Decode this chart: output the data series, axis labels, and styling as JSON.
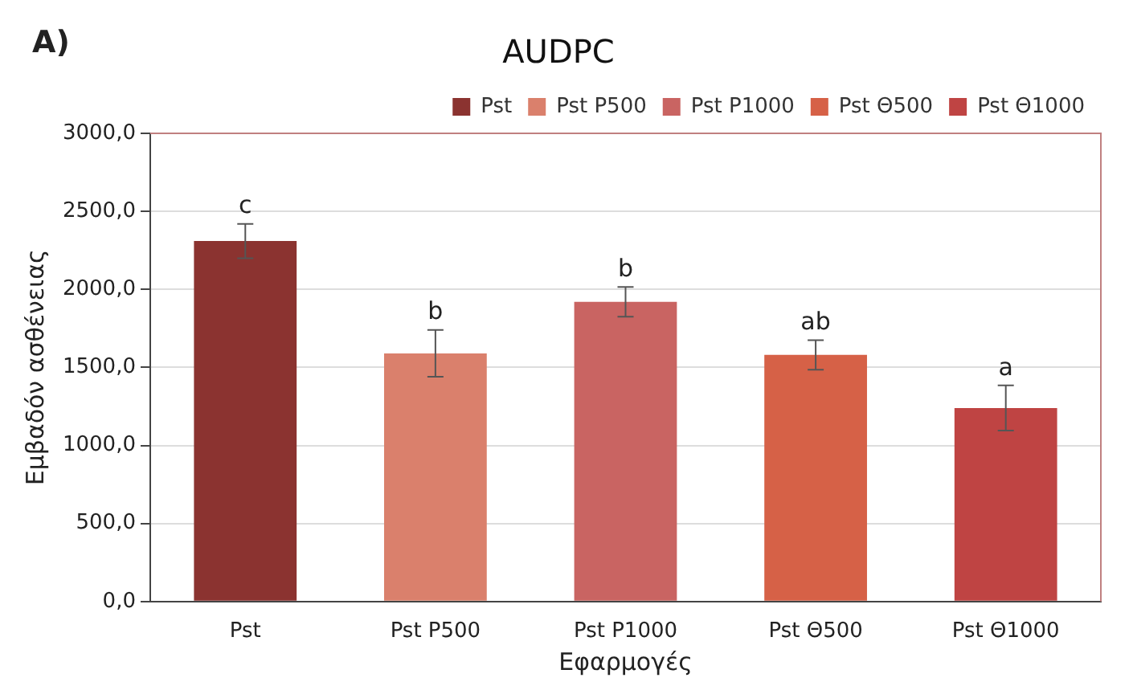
{
  "chart_data": {
    "type": "bar",
    "title": "AUDPC",
    "xlabel": "Εφαρμογές",
    "ylabel": "Εμβαδόν ασθένειας",
    "categories": [
      "Pst",
      "Pst P500",
      "Pst P1000",
      "Pst Θ500",
      "Pst Θ1000"
    ],
    "series": [
      {
        "name": "Pst",
        "color": "#8b3330",
        "values": [
          2310,
          null,
          null,
          null,
          null
        ],
        "errors": [
          110,
          null,
          null,
          null,
          null
        ]
      },
      {
        "name": "Pst P500",
        "color": "#da806c",
        "values": [
          null,
          1590,
          null,
          null,
          null
        ],
        "errors": [
          null,
          150,
          null,
          null,
          null
        ]
      },
      {
        "name": "Pst P1000",
        "color": "#c96462",
        "values": [
          null,
          null,
          1920,
          null,
          null
        ],
        "errors": [
          null,
          null,
          95,
          null,
          null
        ]
      },
      {
        "name": "Pst Θ500",
        "color": "#d66147",
        "values": [
          null,
          null,
          null,
          1580,
          null
        ],
        "errors": [
          null,
          null,
          null,
          95,
          null
        ]
      },
      {
        "name": "Pst Θ1000",
        "color": "#bf4443",
        "values": [
          null,
          null,
          null,
          null,
          1240
        ],
        "errors": [
          null,
          null,
          null,
          null,
          145
        ]
      }
    ],
    "ylim": [
      0,
      3000
    ],
    "yticks": [
      {
        "value": 0,
        "label": "0,0"
      },
      {
        "value": 500,
        "label": "500,0"
      },
      {
        "value": 1000,
        "label": "1000,0"
      },
      {
        "value": 1500,
        "label": "1500,0"
      },
      {
        "value": 2000,
        "label": "2000,0"
      },
      {
        "value": 2500,
        "label": "2500,0"
      },
      {
        "value": 3000,
        "label": "3000,0"
      }
    ],
    "grid": "y",
    "legend": "top",
    "annotations": [
      "A)",
      {
        "text": "c",
        "x": "Pst",
        "y": 2424
      },
      {
        "text": "b",
        "x": "Pst P500",
        "y": 1744
      },
      {
        "text": "b",
        "x": "Pst P1000",
        "y": 2014
      },
      {
        "text": "ab",
        "x": "Pst Θ500",
        "y": 1675
      },
      {
        "text": "a",
        "x": "Pst Θ1000",
        "y": 1380
      }
    ]
  }
}
